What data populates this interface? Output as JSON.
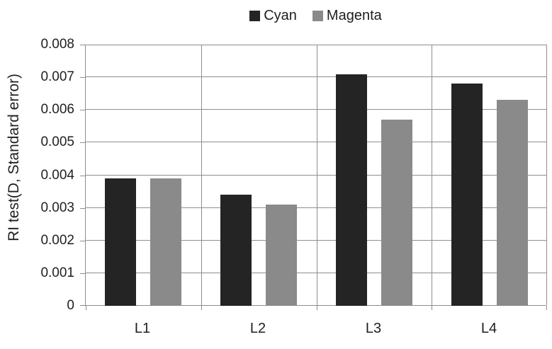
{
  "chart_data": {
    "type": "bar",
    "title": "",
    "categories": [
      "L1",
      "L2",
      "L3",
      "L4"
    ],
    "series": [
      {
        "name": "Cyan",
        "color": "#242424",
        "values": [
          0.0039,
          0.0034,
          0.0071,
          0.0068
        ]
      },
      {
        "name": "Magenta",
        "color": "#8a8a8a",
        "values": [
          0.0039,
          0.0031,
          0.0057,
          0.0063
        ]
      }
    ],
    "xlabel": "",
    "ylabel": "RI test(D, Standard error)",
    "ylim": [
      0,
      0.008
    ],
    "ytick_interval": 0.001,
    "ytick_labels": [
      "0",
      "0.001",
      "0.002",
      "0.003",
      "0.004",
      "0.005",
      "0.006",
      "0.007",
      "0.008"
    ],
    "grid": true,
    "legend_position": "top-center",
    "colors": {
      "gridline": "#8e8e8e",
      "text": "#1f1f1f",
      "background": "#ffffff"
    }
  }
}
